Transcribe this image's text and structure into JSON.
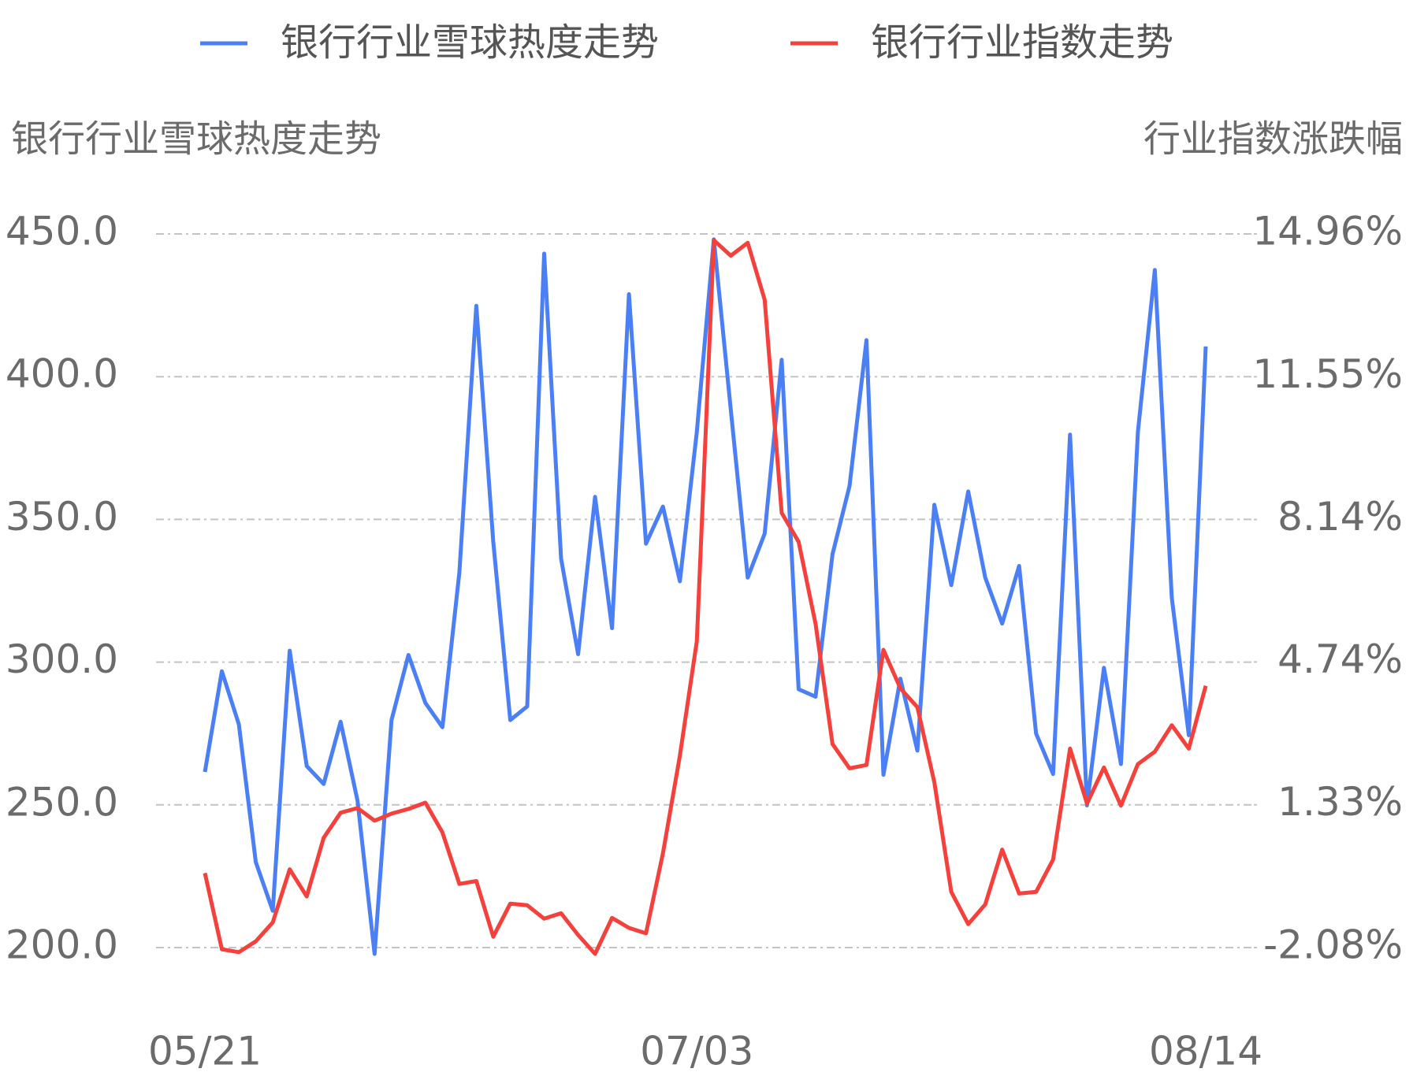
{
  "chart_data": {
    "type": "line",
    "legend_position": "top",
    "y_axis_title": "银行行业雪球热度走势",
    "y2_axis_title": "行业指数涨跌幅",
    "categories": [
      "05/21",
      null,
      null,
      null,
      null,
      null,
      null,
      null,
      null,
      null,
      null,
      null,
      null,
      null,
      null,
      null,
      null,
      null,
      null,
      null,
      null,
      null,
      null,
      null,
      null,
      null,
      null,
      null,
      null,
      "07/03",
      null,
      null,
      null,
      null,
      null,
      null,
      null,
      null,
      null,
      null,
      null,
      null,
      null,
      null,
      null,
      null,
      null,
      null,
      null,
      null,
      null,
      null,
      null,
      null,
      null,
      null,
      null,
      null,
      null,
      "08/14"
    ],
    "ylim": [
      200,
      450
    ],
    "yticks": [
      {
        "value": 450,
        "label": "450.0"
      },
      {
        "value": 400,
        "label": "400.0"
      },
      {
        "value": 350,
        "label": "350.0"
      },
      {
        "value": 300,
        "label": "300.0"
      },
      {
        "value": 250,
        "label": "250.0"
      },
      {
        "value": 200,
        "label": "200.0"
      }
    ],
    "y2lim": [
      -2.08,
      14.96
    ],
    "y2ticks": [
      {
        "value": 14.96,
        "label": "14.96%"
      },
      {
        "value": 11.55,
        "label": "11.55%"
      },
      {
        "value": 8.14,
        "label": "8.14%"
      },
      {
        "value": 4.74,
        "label": "4.74%"
      },
      {
        "value": 1.33,
        "label": "1.33%"
      },
      {
        "value": -2.08,
        "label": "-2.08%"
      }
    ],
    "grid": true,
    "series": [
      {
        "name": "银行行业雪球热度走势",
        "color": "#4a7ff5",
        "axis": "y",
        "values": [
          261.5,
          296.8,
          278.2,
          229.9,
          212.9,
          304.0,
          263.6,
          257.3,
          279.1,
          251.4,
          197.8,
          279.7,
          302.5,
          285.7,
          277.2,
          331.4,
          424.8,
          342.2,
          279.7,
          284.5,
          443.1,
          336.2,
          302.8,
          357.9,
          311.9,
          428.9,
          341.5,
          354.5,
          328.3,
          380.6,
          448.1,
          388.5,
          329.6,
          345.0,
          405.9,
          290.5,
          287.9,
          337.8,
          361.7,
          412.8,
          260.5,
          294.2,
          269.0,
          355.1,
          327.0,
          359.8,
          329.6,
          313.5,
          333.7,
          275.0,
          260.8,
          379.7,
          249.8,
          298.0,
          264.3,
          380.6,
          437.4,
          322.6,
          274.4,
          410.6
        ]
      },
      {
        "name": "银行行业指数走势",
        "color": "#f5403b",
        "axis": "y2",
        "values": [
          -0.3,
          -2.12,
          -2.19,
          -1.93,
          -1.48,
          -0.21,
          -0.86,
          0.54,
          1.14,
          1.25,
          0.95,
          1.12,
          1.23,
          1.38,
          0.67,
          -0.56,
          -0.49,
          -1.82,
          -1.03,
          -1.07,
          -1.39,
          -1.26,
          -1.78,
          -2.23,
          -1.37,
          -1.61,
          -1.74,
          0.17,
          2.5,
          5.23,
          14.81,
          14.44,
          14.75,
          13.39,
          8.3,
          7.61,
          5.65,
          2.78,
          2.2,
          2.28,
          5.03,
          4.11,
          3.66,
          1.87,
          -0.75,
          -1.52,
          -1.05,
          0.26,
          -0.79,
          -0.75,
          0.02,
          2.67,
          1.36,
          2.22,
          1.31,
          2.3,
          2.6,
          3.23,
          2.67,
          4.17
        ]
      }
    ]
  }
}
